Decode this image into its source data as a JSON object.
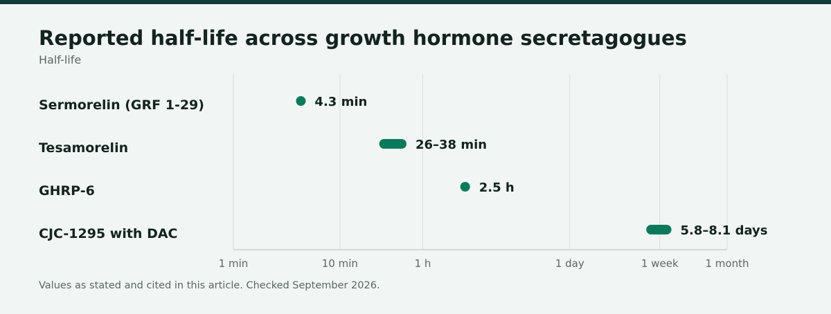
{
  "colors": {
    "accent": "#0b7a5c",
    "top_bar": "#123d3a",
    "background": "#f1f5f3",
    "grid": "#d9dfdc",
    "text": "#13231f",
    "muted": "#5b6763"
  },
  "chart_data": {
    "type": "range_dot",
    "title": "Reported half-life across growth hormone secretagogues",
    "subtitle": "Half-life",
    "footnote": "Values as stated and cited in this article. Checked September 2026.",
    "x_unit": "minutes",
    "x_scale": "log",
    "xlim": [
      1,
      43200
    ],
    "grid": true,
    "ticks": [
      {
        "value": 1,
        "label": "1 min"
      },
      {
        "value": 10,
        "label": "10 min"
      },
      {
        "value": 60,
        "label": "1 h"
      },
      {
        "value": 1440,
        "label": "1 day"
      },
      {
        "value": 10080,
        "label": "1 week"
      },
      {
        "value": 43200,
        "label": "1 month"
      }
    ],
    "items": [
      {
        "name": "Sermorelin (GRF 1-29)",
        "low": 4.3,
        "high": 4.3,
        "label": "4.3 min"
      },
      {
        "name": "Tesamorelin",
        "low": 26,
        "high": 38,
        "label": "26–38 min"
      },
      {
        "name": "GHRP-6",
        "low": 150,
        "high": 150,
        "label": "2.5 h"
      },
      {
        "name": "CJC-1295 with DAC",
        "low": 8352,
        "high": 11664,
        "label": "5.8–8.1 days"
      }
    ]
  }
}
